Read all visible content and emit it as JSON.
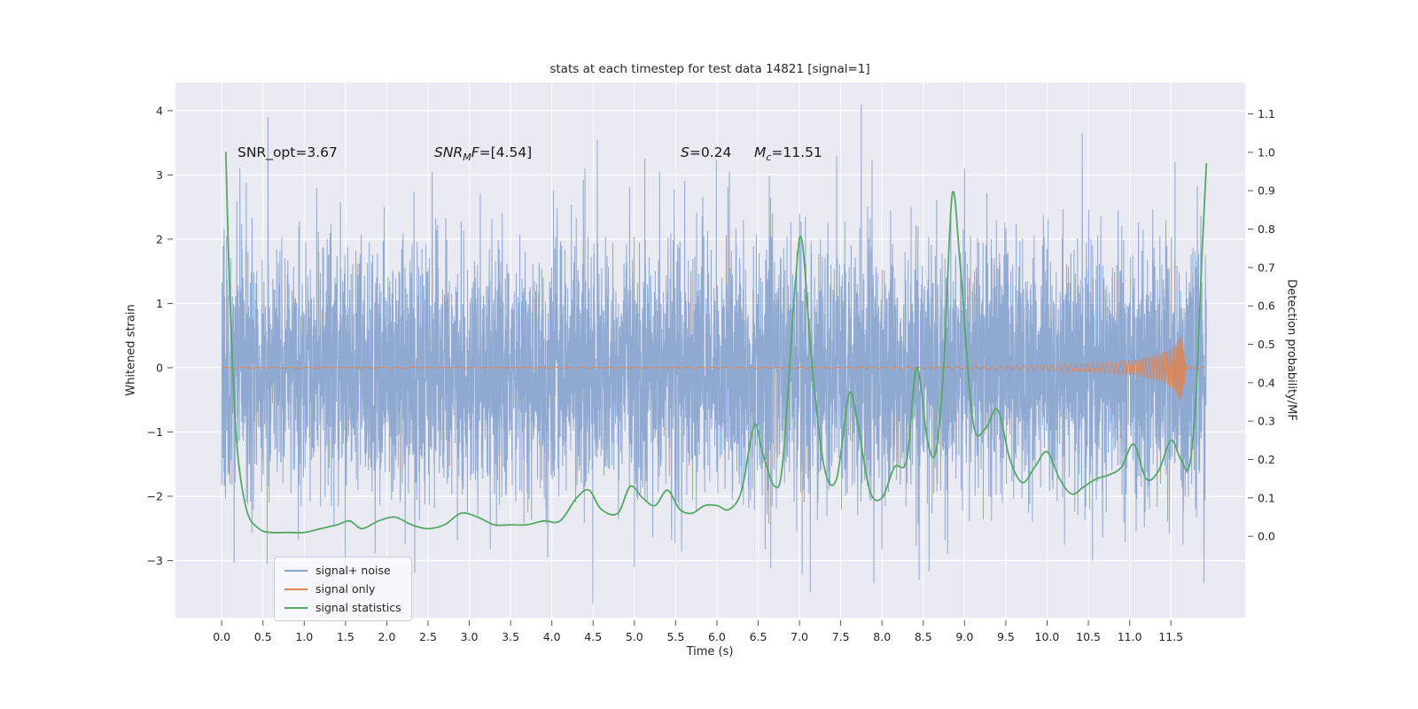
{
  "figure": {
    "title": "stats at each timestep for test data 14821 [signal=1]",
    "xlabel": "Time (s)",
    "ylabel_left": "Whitened strain",
    "ylabel_right": "Detection probability/MF"
  },
  "annotations": {
    "snr_opt": {
      "text": "SNR_opt=3.67"
    },
    "snr_mf": {
      "pre": "SNR",
      "sub": "M",
      "mid": "F",
      "val": "=[4.54]"
    },
    "s_stat": {
      "pre": "S",
      "val": "=0.24"
    },
    "mc": {
      "pre": "M",
      "sub": "c",
      "val": "=11.51"
    }
  },
  "legend": {
    "items": [
      {
        "label": "signal+ noise",
        "color": "#8ba5cf"
      },
      {
        "label": "signal only",
        "color": "#dd8452"
      },
      {
        "label": "signal statistics",
        "color": "#55a868"
      }
    ]
  },
  "colors": {
    "fig_bg": "#ffffff",
    "plot_bg": "#eaeaf2",
    "grid": "#ffffff",
    "tick_text": "#262626",
    "tick_mark": "#555555"
  },
  "chart_data": {
    "type": "line",
    "title": "stats at each timestep for test data 14821 [signal=1]",
    "xlabel": "Time (s)",
    "ylabel_left": "Whitened strain",
    "ylabel_right": "Detection probability/MF",
    "annotations": [
      "SNR_opt=3.67",
      "SNR_MF=[4.54]",
      "S=0.24",
      "M_c=11.51"
    ],
    "legend_position": "lower left",
    "grid": true,
    "xlim": [
      -0.56,
      12.4
    ],
    "ylim_left": [
      -3.89,
      4.44
    ],
    "ylim_right": [
      -0.212,
      1.182
    ],
    "xticks": [
      0.0,
      0.5,
      1.0,
      1.5,
      2.0,
      2.5,
      3.0,
      3.5,
      4.0,
      4.5,
      5.0,
      5.5,
      6.0,
      6.5,
      7.0,
      7.5,
      8.0,
      8.5,
      9.0,
      9.5,
      10.0,
      10.5,
      11.0,
      11.5
    ],
    "yticks_left": [
      -3,
      -2,
      -1,
      0,
      1,
      2,
      3,
      4
    ],
    "yticks_right": [
      0.0,
      0.1,
      0.2,
      0.3,
      0.4,
      0.5,
      0.6,
      0.7,
      0.8,
      0.9,
      1.0,
      1.1
    ],
    "series": [
      {
        "label": "signal+ noise",
        "kind": "noise_line",
        "axis": "left",
        "color": "#8ba5cf",
        "n": 6000,
        "std": 1.0,
        "seed": 48211,
        "t_start": 0.0,
        "t_end": 11.93,
        "outliers": [
          [
            0.22,
            3.1
          ],
          [
            0.55,
            -3.05
          ],
          [
            2.55,
            3.05
          ],
          [
            3.95,
            -2.95
          ],
          [
            4.4,
            3.1
          ],
          [
            5.0,
            -3.1
          ],
          [
            6.15,
            3.05
          ],
          [
            7.45,
            3.3
          ],
          [
            7.75,
            4.1
          ],
          [
            7.9,
            -3.35
          ],
          [
            8.45,
            -3.3
          ],
          [
            9.0,
            3.1
          ],
          [
            10.55,
            -3.0
          ],
          [
            11.55,
            3.2
          ],
          [
            11.9,
            -3.35
          ]
        ]
      },
      {
        "label": "signal only",
        "kind": "chirp",
        "axis": "left",
        "color": "#dd8452",
        "t_start": 0.0,
        "t_end": 11.93,
        "envelope": [
          [
            0,
            0.004
          ],
          [
            5,
            0.005
          ],
          [
            7,
            0.007
          ],
          [
            8,
            0.01
          ],
          [
            9,
            0.018
          ],
          [
            9.5,
            0.028
          ],
          [
            10,
            0.045
          ],
          [
            10.5,
            0.07
          ],
          [
            10.9,
            0.1
          ],
          [
            11.2,
            0.15
          ],
          [
            11.4,
            0.22
          ],
          [
            11.55,
            0.35
          ],
          [
            11.62,
            0.52
          ],
          [
            11.66,
            0.3
          ],
          [
            11.68,
            0.05
          ],
          [
            11.75,
            0.01
          ],
          [
            11.93,
            0.005
          ]
        ],
        "freq": [
          [
            0,
            5
          ],
          [
            8,
            7
          ],
          [
            9,
            9
          ],
          [
            10,
            12
          ],
          [
            10.8,
            18
          ],
          [
            11.3,
            28
          ],
          [
            11.55,
            45
          ],
          [
            11.66,
            70
          ],
          [
            11.7,
            20
          ],
          [
            11.93,
            10
          ]
        ]
      },
      {
        "label": "signal statistics",
        "kind": "line",
        "axis": "right",
        "color": "#55a868",
        "points": [
          [
            0.05,
            1.0
          ],
          [
            0.1,
            0.62
          ],
          [
            0.18,
            0.25
          ],
          [
            0.3,
            0.07
          ],
          [
            0.45,
            0.02
          ],
          [
            0.6,
            0.01
          ],
          [
            0.8,
            0.01
          ],
          [
            1.0,
            0.01
          ],
          [
            1.2,
            0.02
          ],
          [
            1.4,
            0.03
          ],
          [
            1.55,
            0.04
          ],
          [
            1.7,
            0.02
          ],
          [
            1.9,
            0.04
          ],
          [
            2.1,
            0.05
          ],
          [
            2.3,
            0.03
          ],
          [
            2.5,
            0.02
          ],
          [
            2.7,
            0.03
          ],
          [
            2.9,
            0.06
          ],
          [
            3.1,
            0.05
          ],
          [
            3.3,
            0.03
          ],
          [
            3.5,
            0.03
          ],
          [
            3.7,
            0.03
          ],
          [
            3.9,
            0.04
          ],
          [
            4.1,
            0.04
          ],
          [
            4.3,
            0.1
          ],
          [
            4.45,
            0.12
          ],
          [
            4.6,
            0.07
          ],
          [
            4.8,
            0.06
          ],
          [
            4.95,
            0.13
          ],
          [
            5.1,
            0.1
          ],
          [
            5.25,
            0.08
          ],
          [
            5.4,
            0.12
          ],
          [
            5.55,
            0.07
          ],
          [
            5.7,
            0.06
          ],
          [
            5.85,
            0.08
          ],
          [
            6.0,
            0.08
          ],
          [
            6.15,
            0.07
          ],
          [
            6.3,
            0.12
          ],
          [
            6.45,
            0.29
          ],
          [
            6.55,
            0.22
          ],
          [
            6.7,
            0.13
          ],
          [
            6.8,
            0.2
          ],
          [
            6.95,
            0.66
          ],
          [
            7.03,
            0.77
          ],
          [
            7.15,
            0.45
          ],
          [
            7.3,
            0.18
          ],
          [
            7.45,
            0.15
          ],
          [
            7.6,
            0.37
          ],
          [
            7.7,
            0.3
          ],
          [
            7.85,
            0.12
          ],
          [
            8.0,
            0.1
          ],
          [
            8.15,
            0.18
          ],
          [
            8.3,
            0.2
          ],
          [
            8.42,
            0.44
          ],
          [
            8.55,
            0.25
          ],
          [
            8.65,
            0.22
          ],
          [
            8.75,
            0.45
          ],
          [
            8.85,
            0.89
          ],
          [
            8.95,
            0.7
          ],
          [
            9.1,
            0.3
          ],
          [
            9.25,
            0.28
          ],
          [
            9.4,
            0.33
          ],
          [
            9.55,
            0.2
          ],
          [
            9.7,
            0.14
          ],
          [
            9.85,
            0.18
          ],
          [
            10.0,
            0.22
          ],
          [
            10.15,
            0.15
          ],
          [
            10.3,
            0.11
          ],
          [
            10.45,
            0.13
          ],
          [
            10.6,
            0.15
          ],
          [
            10.75,
            0.16
          ],
          [
            10.9,
            0.18
          ],
          [
            11.05,
            0.24
          ],
          [
            11.2,
            0.15
          ],
          [
            11.35,
            0.17
          ],
          [
            11.5,
            0.25
          ],
          [
            11.62,
            0.2
          ],
          [
            11.72,
            0.18
          ],
          [
            11.8,
            0.35
          ],
          [
            11.88,
            0.75
          ],
          [
            11.93,
            0.97
          ]
        ]
      }
    ]
  }
}
